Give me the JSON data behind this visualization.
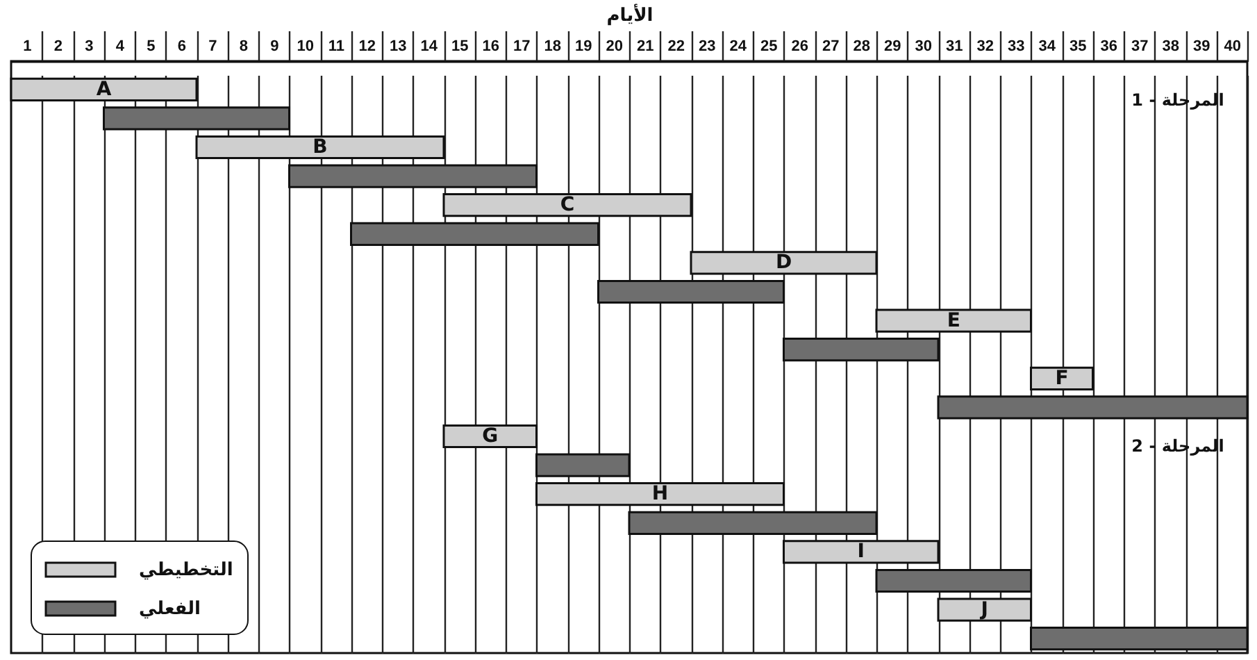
{
  "chart_data": {
    "type": "bar",
    "orientation": "horizontal",
    "xlabel": "الأيام",
    "categories": [
      "A",
      "B",
      "C",
      "D",
      "E",
      "F",
      "G",
      "H",
      "I",
      "J"
    ],
    "series": [
      {
        "name": "التخطيطي",
        "color": "#cfcfcf",
        "base": [
          0.5,
          6.5,
          14.5,
          22.5,
          28.5,
          33.5,
          14.5,
          17.5,
          25.5,
          30.5
        ],
        "values": [
          6,
          8,
          8,
          6,
          5,
          2,
          3,
          8,
          5,
          3
        ]
      },
      {
        "name": "الفعلي",
        "color": "#6e6e6e",
        "base": [
          3.5,
          9.5,
          11.5,
          19.5,
          25.5,
          30.5,
          17.5,
          20.5,
          28.5,
          33.5
        ],
        "values": [
          6,
          8,
          8,
          6,
          5,
          10,
          3,
          8,
          5,
          7
        ]
      }
    ],
    "xlim": [
      0.5,
      40.5
    ],
    "xticks": [
      1,
      2,
      3,
      4,
      5,
      6,
      7,
      8,
      9,
      10,
      11,
      12,
      13,
      14,
      15,
      16,
      17,
      18,
      19,
      20,
      21,
      22,
      23,
      24,
      25,
      26,
      27,
      28,
      29,
      30,
      31,
      32,
      33,
      34,
      35,
      36,
      37,
      38,
      39,
      40
    ],
    "grid": "x",
    "legend": "bottom left",
    "annotations": [
      "المرحلة - 1",
      "المرحلة - 2"
    ]
  }
}
